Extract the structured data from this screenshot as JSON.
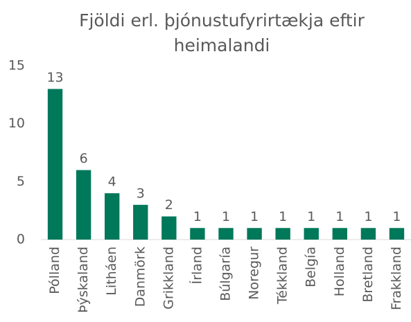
{
  "chart_data": {
    "type": "bar",
    "title": "Fjöldi erl. þjónustufyrirtækja eftir heimalandi",
    "categories": [
      "Pólland",
      "Þýskaland",
      "Litháen",
      "Danmörk",
      "Grikkland",
      "Írland",
      "Búlgaría",
      "Noregur",
      "Tékkland",
      "Belgía",
      "Holland",
      "Bretland",
      "Frakkland"
    ],
    "values": [
      13,
      6,
      4,
      3,
      2,
      1,
      1,
      1,
      1,
      1,
      1,
      1,
      1
    ],
    "color": "#00785a",
    "ylim": [
      0,
      15
    ],
    "yticks": [
      0,
      5,
      10,
      15
    ],
    "grid": false
  }
}
